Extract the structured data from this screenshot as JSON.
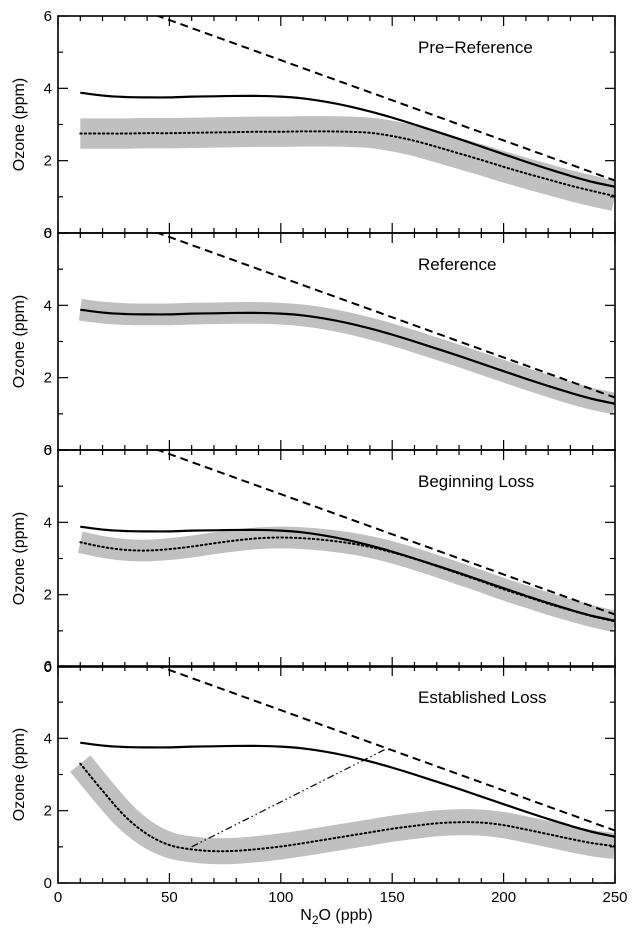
{
  "chart_data": {
    "type": "line",
    "x_axis": {
      "label_main": "N",
      "label_sub": "2",
      "label_tail": "O (ppb)",
      "range": [
        0,
        250
      ],
      "ticks": [
        "0",
        "50",
        "100",
        "150",
        "200",
        "250"
      ]
    },
    "y_axis": {
      "label": "Ozone (ppm)",
      "range": [
        0,
        6
      ],
      "ticks": [
        "0",
        "2",
        "4",
        "6"
      ]
    },
    "reference_line": {
      "x": [
        10,
        45,
        250
      ],
      "y": [
        6.55,
        6.0,
        1.45
      ]
    },
    "reference_profile": {
      "x": [
        10,
        20,
        30,
        40,
        50,
        60,
        70,
        80,
        90,
        100,
        110,
        120,
        130,
        140,
        150,
        160,
        170,
        180,
        190,
        200,
        210,
        220,
        230,
        240,
        250
      ],
      "y": [
        3.88,
        3.8,
        3.76,
        3.75,
        3.75,
        3.77,
        3.78,
        3.79,
        3.79,
        3.77,
        3.72,
        3.63,
        3.51,
        3.36,
        3.19,
        3.0,
        2.8,
        2.6,
        2.39,
        2.18,
        1.97,
        1.77,
        1.58,
        1.41,
        1.28
      ]
    },
    "panels": [
      {
        "title": "Pre−Reference",
        "show_ref_line": true,
        "show_solid": true,
        "dotted": {
          "x": [
            10,
            20,
            30,
            40,
            50,
            60,
            70,
            80,
            90,
            100,
            110,
            120,
            130,
            140,
            150,
            160,
            170,
            180,
            190,
            200,
            210,
            220,
            230,
            240,
            250
          ],
          "y": [
            2.75,
            2.75,
            2.75,
            2.76,
            2.76,
            2.77,
            2.78,
            2.79,
            2.8,
            2.8,
            2.81,
            2.81,
            2.8,
            2.77,
            2.68,
            2.55,
            2.38,
            2.2,
            2.02,
            1.83,
            1.65,
            1.48,
            1.31,
            1.16,
            1.02
          ]
        },
        "band_halfwidth": 0.42
      },
      {
        "title": "Reference",
        "show_ref_line": true,
        "show_solid": true,
        "dotted": null,
        "band_center": "reference_profile",
        "band_halfwidth": 0.3
      },
      {
        "title": "Beginning Loss",
        "show_ref_line": true,
        "show_solid": true,
        "dotted": {
          "x": [
            10,
            20,
            30,
            40,
            50,
            60,
            70,
            80,
            90,
            100,
            110,
            120,
            130,
            140,
            150,
            160,
            170,
            180,
            190,
            200,
            210,
            220,
            230,
            240,
            250
          ],
          "y": [
            3.45,
            3.32,
            3.24,
            3.22,
            3.26,
            3.33,
            3.42,
            3.5,
            3.56,
            3.58,
            3.56,
            3.51,
            3.43,
            3.32,
            3.17,
            2.99,
            2.79,
            2.58,
            2.37,
            2.15,
            1.95,
            1.75,
            1.57,
            1.4,
            1.26
          ]
        },
        "band_halfwidth": 0.3
      },
      {
        "title": "Established Loss",
        "show_ref_line": true,
        "show_solid": true,
        "dotted": {
          "x": [
            10,
            20,
            30,
            40,
            50,
            60,
            70,
            80,
            90,
            100,
            110,
            120,
            130,
            140,
            150,
            160,
            170,
            180,
            190,
            200,
            210,
            220,
            230,
            240,
            250
          ],
          "y": [
            3.3,
            2.55,
            1.85,
            1.35,
            1.05,
            0.93,
            0.88,
            0.89,
            0.94,
            1.01,
            1.1,
            1.2,
            1.3,
            1.4,
            1.5,
            1.58,
            1.65,
            1.68,
            1.67,
            1.6,
            1.48,
            1.35,
            1.22,
            1.1,
            1.02
          ]
        },
        "band_halfwidth": 0.36,
        "dash_dot_line": {
          "x": [
            60,
            147
          ],
          "y": [
            1.0,
            3.7
          ]
        }
      }
    ]
  }
}
